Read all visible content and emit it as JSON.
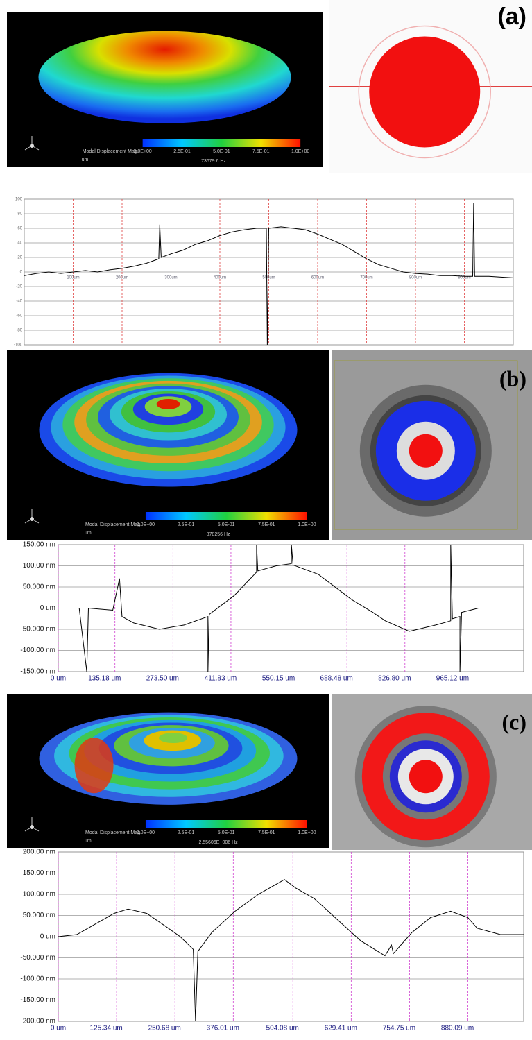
{
  "panels": [
    {
      "label": "(a)",
      "simulation": {
        "legend_title": "Modal Displacement Mag.",
        "colorbar_ticks": [
          "0.0E+00",
          "2.5E-01",
          "5.0E-01",
          "7.5E-01",
          "1.0E+00"
        ],
        "unit": "um",
        "frequency": "73679.6 Hz"
      }
    },
    {
      "label": "(b)",
      "simulation": {
        "legend_title": "Modal Displacement Mag.",
        "colorbar_ticks": [
          "0.0E+00",
          "2.5E-01",
          "5.0E-01",
          "7.5E-01",
          "1.0E+00"
        ],
        "unit": "um",
        "frequency": "878256 Hz"
      }
    },
    {
      "label": "(c)",
      "simulation": {
        "legend_title": "Modal Displacement Mag.",
        "colorbar_ticks": [
          "0.0E+00",
          "2.5E-01",
          "5.0E-01",
          "7.5E-01",
          "1.0E+00"
        ],
        "unit": "um",
        "frequency": "2.55606E+006 Hz"
      }
    }
  ],
  "chart_data": [
    {
      "type": "line",
      "grid": true,
      "x": [
        0,
        25,
        50,
        75,
        100,
        125,
        150,
        175,
        200,
        225,
        250,
        275,
        277,
        280,
        300,
        325,
        350,
        375,
        400,
        425,
        450,
        475,
        495,
        497,
        500,
        525,
        550,
        575,
        600,
        625,
        650,
        675,
        700,
        725,
        750,
        775,
        800,
        825,
        850,
        875,
        900,
        917,
        919,
        921,
        950,
        975,
        1000
      ],
      "series": [
        {
          "color": "#000000",
          "values": [
            -5,
            -2,
            0,
            -2,
            0,
            2,
            0,
            3,
            5,
            8,
            12,
            18,
            65,
            20,
            25,
            30,
            38,
            43,
            50,
            55,
            58,
            60,
            60,
            -100,
            60,
            62,
            60,
            58,
            52,
            45,
            38,
            28,
            18,
            10,
            5,
            0,
            -2,
            -3,
            -5,
            -5,
            -6,
            -6,
            95,
            -6,
            -6,
            -7,
            -8
          ]
        }
      ],
      "xlim": [
        0,
        1000
      ],
      "ylim": [
        -100,
        100
      ],
      "yticks": [
        100,
        80,
        60,
        40,
        20,
        0,
        -20,
        -40,
        -60,
        -80,
        -100
      ],
      "xticks": [
        {
          "value": 100,
          "label": "100um"
        },
        {
          "value": 200,
          "label": "200um"
        },
        {
          "value": 300,
          "label": "300um"
        },
        {
          "value": 400,
          "label": "400um"
        },
        {
          "value": 500,
          "label": "500um"
        },
        {
          "value": 600,
          "label": "600um"
        },
        {
          "value": 700,
          "label": "700um"
        },
        {
          "value": 800,
          "label": "800um"
        },
        {
          "value": 900,
          "label": "900um"
        }
      ]
    },
    {
      "type": "line",
      "grid": true,
      "x": [
        0,
        50,
        68,
        72,
        130,
        146,
        152,
        180,
        241,
        300,
        357,
        357,
        360,
        420,
        473,
        473,
        476,
        520,
        556,
        556,
        560,
        620,
        700,
        750,
        780,
        837,
        900,
        936,
        936,
        940,
        958,
        958,
        962,
        1002,
        1050,
        1110
      ],
      "series": [
        {
          "color": "#000000",
          "values": [
            0,
            0,
            -150,
            0,
            -5,
            70,
            -20,
            -35,
            -50,
            -40,
            -20,
            -150,
            -15,
            30,
            85,
            150,
            88,
            100,
            105,
            150,
            102,
            80,
            20,
            -10,
            -30,
            -55,
            -40,
            -30,
            150,
            -25,
            -20,
            -150,
            -10,
            0,
            0,
            0
          ]
        }
      ],
      "xlim": [
        0,
        1110
      ],
      "ylim": [
        -150,
        150
      ],
      "yticks": [
        {
          "value": 150,
          "label": "150.00 nm"
        },
        {
          "value": 100,
          "label": "100.00 nm"
        },
        {
          "value": 50,
          "label": "50.000 nm"
        },
        {
          "value": 0,
          "label": "0 um"
        },
        {
          "value": -50,
          "label": "-50.000 nm"
        },
        {
          "value": -100,
          "label": "-100.00 nm"
        },
        {
          "value": -150,
          "label": "-150.00 nm"
        }
      ],
      "xticks": [
        {
          "value": 0,
          "label": "0 um"
        },
        {
          "value": 135.18,
          "label": "135.18 um"
        },
        {
          "value": 273.5,
          "label": "273.50 um"
        },
        {
          "value": 411.83,
          "label": "411.83 um"
        },
        {
          "value": 550.15,
          "label": "550.15 um"
        },
        {
          "value": 688.48,
          "label": "688.48 um"
        },
        {
          "value": 826.8,
          "label": "826.80 um"
        },
        {
          "value": 965.12,
          "label": "965.12 um"
        }
      ]
    },
    {
      "type": "line",
      "grid": true,
      "x": [
        0,
        40,
        80,
        120,
        150,
        190,
        230,
        262,
        290,
        295,
        300,
        330,
        380,
        430,
        470,
        486,
        510,
        550,
        600,
        650,
        702,
        716,
        720,
        760,
        800,
        843,
        880,
        900,
        950,
        1000
      ],
      "series": [
        {
          "color": "#000000",
          "values": [
            0,
            5,
            30,
            55,
            65,
            55,
            25,
            0,
            -30,
            -200,
            -35,
            10,
            60,
            100,
            125,
            135,
            115,
            90,
            40,
            -10,
            -45,
            -20,
            -40,
            10,
            45,
            60,
            45,
            20,
            5,
            5
          ]
        }
      ],
      "xlim": [
        0,
        1000
      ],
      "ylim": [
        -200,
        200
      ],
      "yticks": [
        {
          "value": 200,
          "label": "200.00 nm"
        },
        {
          "value": 150,
          "label": "150.00 nm"
        },
        {
          "value": 100,
          "label": "100.00 nm"
        },
        {
          "value": 50,
          "label": "50.000 nm"
        },
        {
          "value": 0,
          "label": "0 um"
        },
        {
          "value": -50,
          "label": "-50.000 nm"
        },
        {
          "value": -100,
          "label": "-100.00 nm"
        },
        {
          "value": -150,
          "label": "-150.00 nm"
        },
        {
          "value": -200,
          "label": "-200.00 nm"
        }
      ],
      "xticks": [
        {
          "value": 0,
          "label": "0 um"
        },
        {
          "value": 125.34,
          "label": "125.34 um"
        },
        {
          "value": 250.68,
          "label": "250.68 um"
        },
        {
          "value": 376.01,
          "label": "376.01 um"
        },
        {
          "value": 504.08,
          "label": "504.08 um"
        },
        {
          "value": 629.41,
          "label": "629.41 um"
        },
        {
          "value": 754.75,
          "label": "754.75 um"
        },
        {
          "value": 880.09,
          "label": "880.09 um"
        }
      ]
    }
  ]
}
